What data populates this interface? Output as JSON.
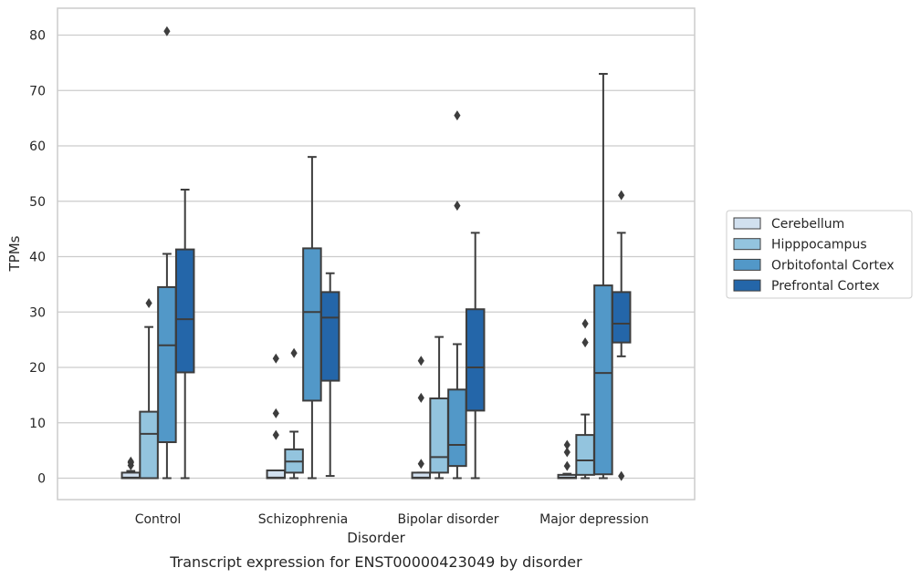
{
  "caption": "Transcript expression for ENST00000423049 by disorder",
  "chart_data": {
    "type": "box",
    "xlabel": "Disorder",
    "ylabel": "TPMs",
    "ylim": [
      -4,
      85
    ],
    "yticks": [
      0,
      10,
      20,
      30,
      40,
      50,
      60,
      70,
      80
    ],
    "grid": "horizontal",
    "legend_position": "right",
    "categories": [
      "Control",
      "Schizophrenia",
      "Bipolar disorder",
      "Major depression"
    ],
    "series": [
      {
        "name": "Cerebellum",
        "color": "#d1e0ef",
        "boxes": [
          {
            "q1": 0,
            "median": 0.1,
            "q3": 1.0,
            "whislo": 0,
            "whishi": 1.3,
            "fliers": [
              2.3,
              2.8,
              3.0
            ]
          },
          {
            "q1": 0,
            "median": 0.1,
            "q3": 1.4,
            "whislo": 0,
            "whishi": 1.4,
            "fliers": [
              7.8,
              11.7,
              21.6
            ]
          },
          {
            "q1": 0,
            "median": 0.1,
            "q3": 1.0,
            "whislo": 0,
            "whishi": 1.0,
            "fliers": [
              2.6,
              14.5,
              21.2
            ]
          },
          {
            "q1": 0,
            "median": 0.1,
            "q3": 0.6,
            "whislo": 0,
            "whishi": 0.8,
            "fliers": [
              2.2,
              4.7,
              6.0
            ]
          }
        ]
      },
      {
        "name": "Hipppocampus",
        "color": "#93c4de",
        "boxes": [
          {
            "q1": 0,
            "median": 8.0,
            "q3": 12.0,
            "whislo": 0,
            "whishi": 27.3,
            "fliers": [
              31.6
            ]
          },
          {
            "q1": 1.0,
            "median": 3.0,
            "q3": 5.2,
            "whislo": 0,
            "whishi": 8.4,
            "fliers": [
              22.6
            ]
          },
          {
            "q1": 1.0,
            "median": 3.8,
            "q3": 14.4,
            "whislo": 0,
            "whishi": 25.5,
            "fliers": []
          },
          {
            "q1": 0.6,
            "median": 3.2,
            "q3": 7.8,
            "whislo": 0,
            "whishi": 11.5,
            "fliers": [
              24.5,
              27.9
            ]
          }
        ]
      },
      {
        "name": "Orbitofontal Cortex",
        "color": "#5298c8",
        "boxes": [
          {
            "q1": 6.5,
            "median": 24.0,
            "q3": 34.5,
            "whislo": 0,
            "whishi": 40.5,
            "fliers": [
              80.7
            ]
          },
          {
            "q1": 14.0,
            "median": 30.0,
            "q3": 41.5,
            "whislo": 0,
            "whishi": 58.0,
            "fliers": []
          },
          {
            "q1": 2.2,
            "median": 6.0,
            "q3": 16.0,
            "whislo": 0,
            "whishi": 24.2,
            "fliers": [
              49.2,
              65.5
            ]
          },
          {
            "q1": 0.7,
            "median": 19.0,
            "q3": 34.8,
            "whislo": 0,
            "whishi": 73.0,
            "fliers": []
          }
        ]
      },
      {
        "name": "Prefrontal Cortex",
        "color": "#2466a9",
        "boxes": [
          {
            "q1": 19.1,
            "median": 28.7,
            "q3": 41.3,
            "whislo": 0,
            "whishi": 52.1,
            "fliers": []
          },
          {
            "q1": 17.6,
            "median": 29.0,
            "q3": 33.6,
            "whislo": 0.4,
            "whishi": 37.0,
            "fliers": []
          },
          {
            "q1": 12.2,
            "median": 20.0,
            "q3": 30.5,
            "whislo": 0,
            "whishi": 44.3,
            "fliers": []
          },
          {
            "q1": 24.5,
            "median": 27.9,
            "q3": 33.6,
            "whislo": 22.0,
            "whishi": 44.3,
            "fliers": [
              0.4,
              51.1
            ]
          }
        ]
      }
    ]
  }
}
